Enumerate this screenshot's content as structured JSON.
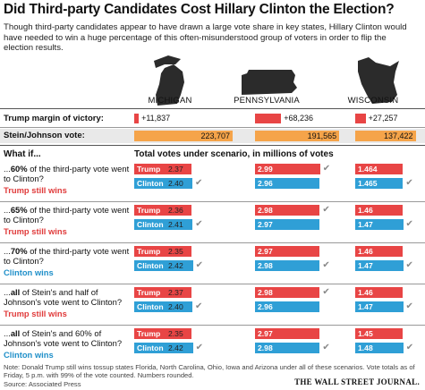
{
  "title": "Did Third-party Candidates Cost Hillary Clinton the Election?",
  "intro": "Though third-party candidates appear to have drawn a large vote share in key states, Hillary Clinton would have needed to win a huge percentage of this often-misunderstood group of voters in order to flip the election results.",
  "states": [
    "MICHIGAN",
    "PENNSYLVANIA",
    "WISCONSIN"
  ],
  "summary_rows": {
    "margin_label": "Trump margin of victory:",
    "margins": [
      "+11,837",
      "+68,236",
      "+27,257"
    ],
    "margin_values": [
      11837,
      68236,
      27257
    ],
    "stein_label": "Stein/Johnson vote:",
    "stein": [
      "223,707",
      "191,565",
      "137,422"
    ],
    "stein_values": [
      223707,
      191565,
      137422
    ]
  },
  "section_header": {
    "left": "What if...",
    "right": "Total votes under scenario, in millions of votes"
  },
  "colors": {
    "trump": "#e84545",
    "clinton": "#2f9fd6",
    "votes": "#f5a44a",
    "trump_text": "#e03b3b",
    "clinton_text": "#1f8fc9"
  },
  "series_labels": {
    "trump": "Trump",
    "clinton": "Clinton"
  },
  "checkmark_icon": "check-icon",
  "scenarios": [
    {
      "q": "...60% of the third-party vote went to Clinton?",
      "q_bold": "60%",
      "result": "Trump still wins",
      "winner": "trump",
      "results": [
        {
          "trump": "2.37",
          "clinton": "2.40",
          "check": "clinton"
        },
        {
          "trump": "2.99",
          "clinton": "2.96",
          "check": "trump"
        },
        {
          "trump": "1.464",
          "clinton": "1.465",
          "check": "clinton"
        }
      ]
    },
    {
      "q": "...65% of the third-party vote went to Clinton?",
      "q_bold": "65%",
      "result": "Trump still wins",
      "winner": "trump",
      "results": [
        {
          "trump": "2.36",
          "clinton": "2.41",
          "check": "clinton"
        },
        {
          "trump": "2.98",
          "clinton": "2.97",
          "check": "trump"
        },
        {
          "trump": "1.46",
          "clinton": "1.47",
          "check": "clinton"
        }
      ]
    },
    {
      "q": "...70% of the third-party vote went to Clinton?",
      "q_bold": "70%",
      "result": "Clinton wins",
      "winner": "clinton",
      "results": [
        {
          "trump": "2.35",
          "clinton": "2.42",
          "check": "clinton"
        },
        {
          "trump": "2.97",
          "clinton": "2.98",
          "check": "clinton"
        },
        {
          "trump": "1.46",
          "clinton": "1.47",
          "check": "clinton"
        }
      ]
    },
    {
      "q": "...all of Stein's and half of Johnson's vote went to Clinton?",
      "q_bold": "all",
      "result": "Trump still wins",
      "winner": "trump",
      "results": [
        {
          "trump": "2.37",
          "clinton": "2.40",
          "check": "clinton"
        },
        {
          "trump": "2.98",
          "clinton": "2.96",
          "check": "trump"
        },
        {
          "trump": "1.46",
          "clinton": "1.47",
          "check": "clinton"
        }
      ]
    },
    {
      "q": "...all of Stein's and 60% of Johnson's vote went to Clinton?",
      "q_bold": "all",
      "result": "Clinton wins",
      "winner": "clinton",
      "results": [
        {
          "trump": "2.35",
          "clinton": "2.42",
          "check": "clinton"
        },
        {
          "trump": "2.97",
          "clinton": "2.98",
          "check": "clinton"
        },
        {
          "trump": "1.45",
          "clinton": "1.48",
          "check": "clinton"
        }
      ]
    }
  ],
  "chart_data": {
    "type": "bar",
    "title": "Did Third-party Candidates Cost Hillary Clinton the Election?",
    "categories": [
      "MICHIGAN",
      "PENNSYLVANIA",
      "WISCONSIN"
    ],
    "trump_margin": [
      11837,
      68236,
      27257
    ],
    "stein_johnson_vote": [
      223707,
      191565,
      137422
    ],
    "ylabel": "Total votes under scenario, in millions of votes",
    "scenarios": [
      {
        "name": "...60% of the third-party vote went to Clinton?",
        "trump": [
          2.37,
          2.99,
          1.464
        ],
        "clinton": [
          2.4,
          2.96,
          1.465
        ]
      },
      {
        "name": "...65% of the third-party vote went to Clinton?",
        "trump": [
          2.36,
          2.98,
          1.46
        ],
        "clinton": [
          2.41,
          2.97,
          1.47
        ]
      },
      {
        "name": "...70% of the third-party vote went to Clinton?",
        "trump": [
          2.35,
          2.97,
          1.46
        ],
        "clinton": [
          2.42,
          2.98,
          1.47
        ]
      },
      {
        "name": "...all of Stein's and half of Johnson's vote went to Clinton?",
        "trump": [
          2.37,
          2.98,
          1.46
        ],
        "clinton": [
          2.4,
          2.96,
          1.47
        ]
      },
      {
        "name": "...all of Stein's and 60% of Johnson's vote went to Clinton?",
        "trump": [
          2.35,
          2.97,
          1.45
        ],
        "clinton": [
          2.42,
          2.98,
          1.48
        ]
      }
    ]
  },
  "note": "Note: Donald Trump still wins tossup states Florida, North Carolina, Ohio, Iowa and Arizona under all of these scenarios. Vote totals as of Friday, 5 p.m. with 99% of the vote counted. Numbers rounded.",
  "source": "Source: Associated Press",
  "publisher": "THE WALL STREET JOURNAL."
}
